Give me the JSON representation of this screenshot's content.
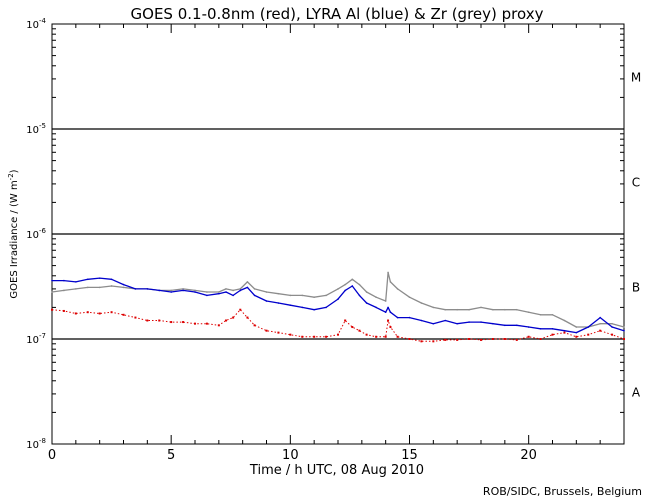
{
  "chart_data": {
    "type": "line",
    "title": "GOES 0.1-0.8nm (red), LYRA Al (blue) & Zr (grey) proxy",
    "xlabel": "Time / h UTC, 08 Aug 2010",
    "ylabel": "GOES Irradiance / (W m",
    "ylabel_exp": "-2",
    "ylabel_close": ")",
    "xlim": [
      0,
      24
    ],
    "ylim_exponents": [
      -8,
      -4
    ],
    "yscale": "log",
    "x_ticks": [
      0,
      5,
      10,
      15,
      20
    ],
    "x_tick_labels": [
      "0",
      "5",
      "10",
      "15",
      "20"
    ],
    "y_tick_base": "10",
    "y_tick_exps": [
      "-8",
      "-7",
      "-6",
      "-5",
      "-4"
    ],
    "flare_class_lines": [
      -7,
      -6,
      -5
    ],
    "flare_classes": [
      {
        "label": "A",
        "exp": -7.5
      },
      {
        "label": "B",
        "exp": -6.5
      },
      {
        "label": "C",
        "exp": -5.5
      },
      {
        "label": "M",
        "exp": -4.5
      }
    ],
    "series": [
      {
        "name": "LYRA Zr proxy",
        "color": "#8c8c8c",
        "style": "line",
        "x": [
          0,
          0.5,
          1,
          1.5,
          2,
          2.5,
          3,
          3.5,
          4,
          4.5,
          5,
          5.5,
          6,
          6.5,
          7,
          7.3,
          7.6,
          7.9,
          8.2,
          8.5,
          9,
          9.5,
          10,
          10.5,
          11,
          11.5,
          12,
          12.3,
          12.6,
          12.9,
          13.2,
          13.6,
          14,
          14.1,
          14.2,
          14.5,
          15,
          15.5,
          16,
          16.5,
          17,
          17.5,
          18,
          18.5,
          19,
          19.5,
          20,
          20.5,
          21,
          21.5,
          22,
          22.5,
          23,
          23.5,
          24
        ],
        "y": [
          2.8e-07,
          2.9e-07,
          3e-07,
          3.1e-07,
          3.1e-07,
          3.2e-07,
          3.1e-07,
          3e-07,
          3e-07,
          2.9e-07,
          2.9e-07,
          3e-07,
          2.9e-07,
          2.8e-07,
          2.8e-07,
          3e-07,
          2.9e-07,
          3e-07,
          3.5e-07,
          3e-07,
          2.8e-07,
          2.7e-07,
          2.6e-07,
          2.6e-07,
          2.5e-07,
          2.6e-07,
          3e-07,
          3.3e-07,
          3.7e-07,
          3.3e-07,
          2.8e-07,
          2.5e-07,
          2.3e-07,
          4.3e-07,
          3.5e-07,
          3e-07,
          2.5e-07,
          2.2e-07,
          2e-07,
          1.9e-07,
          1.9e-07,
          1.9e-07,
          2e-07,
          1.9e-07,
          1.9e-07,
          1.9e-07,
          1.8e-07,
          1.7e-07,
          1.7e-07,
          1.5e-07,
          1.3e-07,
          1.3e-07,
          1.4e-07,
          1.4e-07,
          1.3e-07
        ]
      },
      {
        "name": "LYRA Al proxy",
        "color": "#0000cc",
        "style": "line",
        "x": [
          0,
          0.5,
          1,
          1.5,
          2,
          2.5,
          3,
          3.5,
          4,
          4.5,
          5,
          5.5,
          6,
          6.5,
          7,
          7.3,
          7.6,
          7.9,
          8.2,
          8.5,
          9,
          9.5,
          10,
          10.5,
          11,
          11.5,
          12,
          12.3,
          12.6,
          12.9,
          13.2,
          13.6,
          14,
          14.1,
          14.2,
          14.5,
          15,
          15.5,
          16,
          16.5,
          17,
          17.5,
          18,
          18.5,
          19,
          19.5,
          20,
          20.5,
          21,
          21.5,
          22,
          22.5,
          23,
          23.5,
          24
        ],
        "y": [
          3.6e-07,
          3.6e-07,
          3.5e-07,
          3.7e-07,
          3.8e-07,
          3.7e-07,
          3.3e-07,
          3e-07,
          3e-07,
          2.9e-07,
          2.8e-07,
          2.9e-07,
          2.8e-07,
          2.6e-07,
          2.7e-07,
          2.8e-07,
          2.6e-07,
          2.9e-07,
          3.1e-07,
          2.6e-07,
          2.3e-07,
          2.2e-07,
          2.1e-07,
          2e-07,
          1.9e-07,
          2e-07,
          2.4e-07,
          2.9e-07,
          3.2e-07,
          2.6e-07,
          2.2e-07,
          2e-07,
          1.8e-07,
          2e-07,
          1.8e-07,
          1.6e-07,
          1.6e-07,
          1.5e-07,
          1.4e-07,
          1.5e-07,
          1.4e-07,
          1.45e-07,
          1.45e-07,
          1.4e-07,
          1.35e-07,
          1.35e-07,
          1.3e-07,
          1.25e-07,
          1.25e-07,
          1.2e-07,
          1.15e-07,
          1.3e-07,
          1.6e-07,
          1.3e-07,
          1.2e-07
        ]
      },
      {
        "name": "GOES 0.1-0.8nm",
        "color": "#dd0000",
        "style": "points",
        "x": [
          0,
          0.5,
          1,
          1.5,
          2,
          2.5,
          3,
          3.5,
          4,
          4.5,
          5,
          5.5,
          6,
          6.5,
          7,
          7.3,
          7.6,
          7.9,
          8.2,
          8.5,
          9,
          9.5,
          10,
          10.5,
          11,
          11.5,
          12,
          12.3,
          12.6,
          12.9,
          13.2,
          13.6,
          14,
          14.1,
          14.2,
          14.5,
          15,
          15.5,
          16,
          16.5,
          17,
          17.5,
          18,
          18.5,
          19,
          19.5,
          20,
          20.5,
          21,
          21.5,
          22,
          22.5,
          23,
          23.5,
          24
        ],
        "y": [
          1.9e-07,
          1.85e-07,
          1.75e-07,
          1.8e-07,
          1.75e-07,
          1.8e-07,
          1.7e-07,
          1.6e-07,
          1.5e-07,
          1.5e-07,
          1.45e-07,
          1.45e-07,
          1.4e-07,
          1.4e-07,
          1.35e-07,
          1.5e-07,
          1.6e-07,
          1.9e-07,
          1.6e-07,
          1.35e-07,
          1.2e-07,
          1.15e-07,
          1.1e-07,
          1.05e-07,
          1.05e-07,
          1.05e-07,
          1.1e-07,
          1.5e-07,
          1.3e-07,
          1.2e-07,
          1.1e-07,
          1.05e-07,
          1.05e-07,
          1.5e-07,
          1.3e-07,
          1.05e-07,
          1e-07,
          9.5e-08,
          9.5e-08,
          9.8e-08,
          9.8e-08,
          1e-07,
          9.8e-08,
          1e-07,
          1e-07,
          9.8e-08,
          1.05e-07,
          1e-07,
          1.1e-07,
          1.15e-07,
          1.05e-07,
          1.1e-07,
          1.2e-07,
          1.1e-07,
          1e-07
        ]
      }
    ]
  },
  "credit": "ROB/SIDC, Brussels, Belgium"
}
